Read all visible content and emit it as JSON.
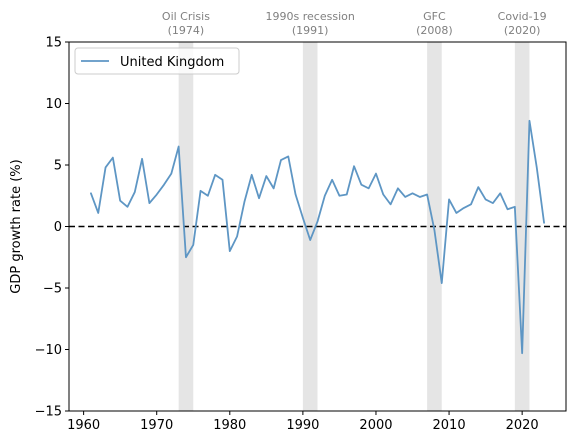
{
  "chart_data": {
    "type": "line",
    "title": "",
    "xlabel": "",
    "ylabel": "GDP growth rate (%)",
    "xlim": [
      1958,
      2026
    ],
    "ylim": [
      -15,
      15
    ],
    "x_ticks": [
      1960,
      1970,
      1980,
      1990,
      2000,
      2010,
      2020
    ],
    "y_ticks": [
      -15,
      -10,
      -5,
      0,
      5,
      10,
      15
    ],
    "grid": false,
    "legend_position": "upper-left",
    "reference_line": {
      "y": 0,
      "style": "dashed",
      "color": "#000000"
    },
    "series": [
      {
        "name": "United Kingdom",
        "color": "#5e96c4",
        "x": [
          1961,
          1962,
          1963,
          1964,
          1965,
          1966,
          1967,
          1968,
          1969,
          1970,
          1971,
          1972,
          1973,
          1974,
          1975,
          1976,
          1977,
          1978,
          1979,
          1980,
          1981,
          1982,
          1983,
          1984,
          1985,
          1986,
          1987,
          1988,
          1989,
          1990,
          1991,
          1992,
          1993,
          1994,
          1995,
          1996,
          1997,
          1998,
          1999,
          2000,
          2001,
          2002,
          2003,
          2004,
          2005,
          2006,
          2007,
          2008,
          2009,
          2010,
          2011,
          2012,
          2013,
          2014,
          2015,
          2016,
          2017,
          2018,
          2019,
          2020,
          2021,
          2022,
          2023
        ],
        "values": [
          2.7,
          1.1,
          4.8,
          5.6,
          2.1,
          1.6,
          2.8,
          5.5,
          1.9,
          2.6,
          3.4,
          4.3,
          6.5,
          -2.5,
          -1.5,
          2.9,
          2.5,
          4.2,
          3.8,
          -2.0,
          -0.8,
          2.0,
          4.2,
          2.3,
          4.1,
          3.1,
          5.4,
          5.7,
          2.6,
          0.7,
          -1.1,
          0.4,
          2.5,
          3.8,
          2.5,
          2.6,
          4.9,
          3.4,
          3.1,
          4.3,
          2.6,
          1.8,
          3.1,
          2.4,
          2.7,
          2.4,
          2.6,
          -0.3,
          -4.6,
          2.2,
          1.1,
          1.5,
          1.8,
          3.2,
          2.2,
          1.9,
          2.7,
          1.4,
          1.6,
          -10.3,
          8.6,
          4.8,
          0.3
        ]
      }
    ],
    "shaded_periods": [
      {
        "start": 1973,
        "end": 1975,
        "label": "Oil Crisis",
        "sublabel": "(1974)"
      },
      {
        "start": 1990,
        "end": 1992,
        "label": "1990s recession",
        "sublabel": "(1991)"
      },
      {
        "start": 2007,
        "end": 2009,
        "label": "GFC",
        "sublabel": "(2008)"
      },
      {
        "start": 2019,
        "end": 2021,
        "label": "Covid-19",
        "sublabel": "(2020)"
      }
    ],
    "shade_color": "#e5e5e5",
    "annotation_color": "#808080"
  }
}
